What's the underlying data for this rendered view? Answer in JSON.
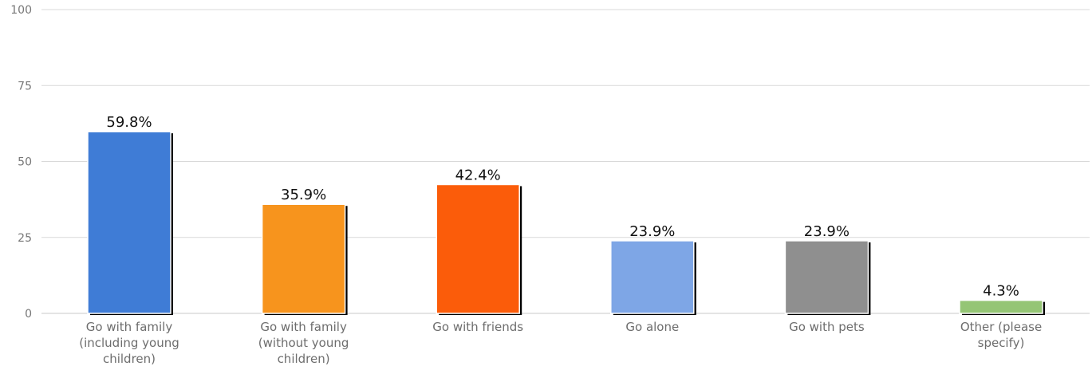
{
  "chart_data": {
    "type": "bar",
    "categories": [
      "Go with family (including young children)",
      "Go with family (without young children)",
      "Go with friends",
      "Go alone",
      "Go with pets",
      "Other (please specify)"
    ],
    "category_lines": [
      [
        "Go with family",
        "(including young",
        "children)"
      ],
      [
        "Go with family",
        "(without young",
        "children)"
      ],
      [
        "Go with friends"
      ],
      [
        "Go alone"
      ],
      [
        "Go with pets"
      ],
      [
        "Other (please",
        "specify)"
      ]
    ],
    "values": [
      59.8,
      35.9,
      42.4,
      23.9,
      23.9,
      4.3
    ],
    "value_labels": [
      "59.8%",
      "35.9%",
      "42.4%",
      "23.9%",
      "23.9%",
      "4.3%"
    ],
    "bar_colors": [
      "#3f7cd6",
      "#f7941d",
      "#fb5c0a",
      "#7ea6e6",
      "#8f8f8f",
      "#95c575"
    ],
    "title": "",
    "xlabel": "",
    "ylabel": "",
    "ylim": [
      0,
      100
    ],
    "yticks": [
      0,
      25,
      50,
      75,
      100
    ],
    "ytick_labels": [
      "0",
      "25",
      "50",
      "75",
      "100"
    ],
    "grid": true,
    "legend": "none"
  }
}
